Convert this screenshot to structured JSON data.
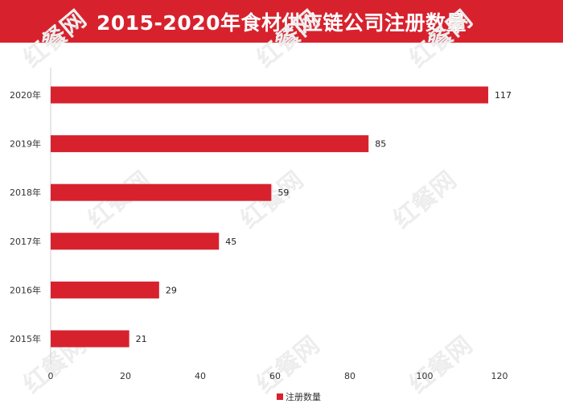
{
  "title": "2015-2020年食材供应链公司注册数量",
  "watermark": "红餐网",
  "colors": {
    "accent": "#d7222e",
    "bar": "#d7222e"
  },
  "chart_data": {
    "type": "bar",
    "orientation": "horizontal",
    "title": "2015-2020年食材供应链公司注册数量",
    "categories": [
      "2020年",
      "2019年",
      "2018年",
      "2017年",
      "2016年",
      "2015年"
    ],
    "series": [
      {
        "name": "注册数量",
        "values": [
          117,
          85,
          59,
          45,
          29,
          21
        ]
      }
    ],
    "xlim": [
      0,
      120
    ],
    "xticks": [
      0,
      20,
      40,
      60,
      80,
      100,
      120
    ],
    "grid": false,
    "legend": "bottom",
    "data_labels": true
  }
}
